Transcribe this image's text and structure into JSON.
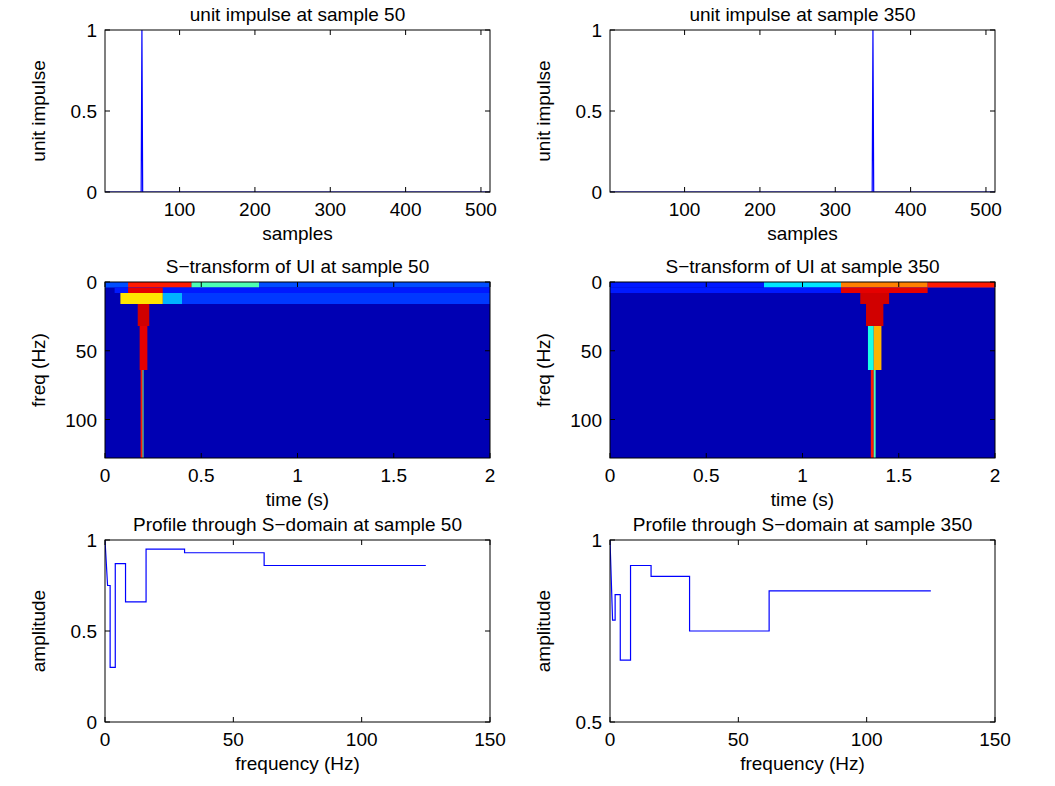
{
  "chart_data": [
    {
      "type": "line",
      "title": "unit impulse at sample 50",
      "x_label": "samples",
      "y_label": "unit impulse",
      "x": [
        1,
        49,
        50,
        51,
        512
      ],
      "series": [
        {
          "color": "#0000ff",
          "values": [
            0,
            0,
            1,
            0,
            0
          ]
        }
      ],
      "xlim": [
        1,
        512
      ],
      "ylim": [
        0,
        1
      ],
      "xticks": [
        100,
        200,
        300,
        400,
        500
      ],
      "yticks": [
        0,
        0.5,
        1
      ]
    },
    {
      "type": "line",
      "title": "unit impulse at sample 350",
      "x_label": "samples",
      "y_label": "unit impulse",
      "x": [
        1,
        349,
        350,
        351,
        512
      ],
      "series": [
        {
          "color": "#0000ff",
          "values": [
            0,
            0,
            1,
            0,
            0
          ]
        }
      ],
      "xlim": [
        1,
        512
      ],
      "ylim": [
        0,
        1
      ],
      "xticks": [
        100,
        200,
        300,
        400,
        500
      ],
      "yticks": [
        0,
        0.5,
        1
      ]
    },
    {
      "type": "heatmap",
      "title": "S−transform of UI at sample 50",
      "x_label": "time (s)",
      "y_label": "freq (Hz)",
      "xlim": [
        0,
        2
      ],
      "ylim": [
        128,
        0
      ],
      "xticks": [
        0,
        0.5,
        1,
        1.5,
        2
      ],
      "yticks": [
        0,
        50,
        100
      ],
      "color_range": [
        0,
        1
      ],
      "cells": [
        {
          "t": [
            0,
            2
          ],
          "f": [
            0,
            128
          ],
          "value": 0.05
        },
        {
          "t": [
            0,
            2
          ],
          "f": [
            0,
            4
          ],
          "value": 0.2
        },
        {
          "t": [
            0.12,
            0.45
          ],
          "f": [
            0,
            4
          ],
          "value": 0.85
        },
        {
          "t": [
            0.45,
            0.8
          ],
          "f": [
            0,
            4
          ],
          "value": 0.45
        },
        {
          "t": [
            0.05,
            2
          ],
          "f": [
            4,
            8
          ],
          "value": 0.15
        },
        {
          "t": [
            0.12,
            0.3
          ],
          "f": [
            4,
            8
          ],
          "value": 0.9
        },
        {
          "t": [
            0.4,
            2
          ],
          "f": [
            8,
            16
          ],
          "value": 0.18
        },
        {
          "t": [
            0.3,
            0.4
          ],
          "f": [
            8,
            16
          ],
          "value": 0.3
        },
        {
          "t": [
            0.08,
            0.3
          ],
          "f": [
            8,
            16
          ],
          "value": 0.65
        },
        {
          "t": [
            0.17,
            0.23
          ],
          "f": [
            16,
            32
          ],
          "value": 0.92
        },
        {
          "t": [
            0.18,
            0.22
          ],
          "f": [
            32,
            64
          ],
          "value": 0.9
        },
        {
          "t": [
            0.185,
            0.195
          ],
          "f": [
            64,
            128
          ],
          "value": 0.85
        },
        {
          "t": [
            0.195,
            0.2
          ],
          "f": [
            64,
            128
          ],
          "value": 0.5
        }
      ]
    },
    {
      "type": "heatmap",
      "title": "S−transform of UI at sample 350",
      "x_label": "time (s)",
      "y_label": "freq (Hz)",
      "xlim": [
        0,
        2
      ],
      "ylim": [
        128,
        0
      ],
      "xticks": [
        0,
        0.5,
        1,
        1.5,
        2
      ],
      "yticks": [
        0,
        50,
        100
      ],
      "color_range": [
        0,
        1
      ],
      "cells": [
        {
          "t": [
            0,
            2
          ],
          "f": [
            0,
            128
          ],
          "value": 0.05
        },
        {
          "t": [
            0,
            2
          ],
          "f": [
            0,
            4
          ],
          "value": 0.15
        },
        {
          "t": [
            0.8,
            1.2
          ],
          "f": [
            0,
            4
          ],
          "value": 0.35
        },
        {
          "t": [
            1.2,
            1.65
          ],
          "f": [
            0,
            4
          ],
          "value": 0.75
        },
        {
          "t": [
            1.65,
            2
          ],
          "f": [
            0,
            4
          ],
          "value": 0.85
        },
        {
          "t": [
            0,
            1.2
          ],
          "f": [
            4,
            8
          ],
          "value": 0.15
        },
        {
          "t": [
            1.2,
            1.65
          ],
          "f": [
            4,
            8
          ],
          "value": 0.9
        },
        {
          "t": [
            1.3,
            1.45
          ],
          "f": [
            8,
            16
          ],
          "value": 0.92
        },
        {
          "t": [
            1.33,
            1.42
          ],
          "f": [
            16,
            32
          ],
          "value": 0.92
        },
        {
          "t": [
            1.34,
            1.37
          ],
          "f": [
            32,
            64
          ],
          "value": 0.4
        },
        {
          "t": [
            1.37,
            1.41
          ],
          "f": [
            32,
            64
          ],
          "value": 0.7
        },
        {
          "t": [
            1.355,
            1.37
          ],
          "f": [
            64,
            128
          ],
          "value": 0.85
        },
        {
          "t": [
            1.37,
            1.38
          ],
          "f": [
            64,
            128
          ],
          "value": 0.45
        }
      ]
    },
    {
      "type": "line",
      "title": "Profile through S−domain at sample 50",
      "x_label": "frequency (Hz)",
      "y_label": "amplitude",
      "x": [
        0,
        1,
        1,
        2,
        2,
        4,
        4,
        8,
        8,
        16,
        16,
        31,
        31,
        62,
        62,
        125
      ],
      "series": [
        {
          "color": "#0000ff",
          "values": [
            1,
            0.75,
            0.75,
            0.75,
            0.3,
            0.3,
            0.87,
            0.87,
            0.66,
            0.66,
            0.95,
            0.95,
            0.93,
            0.93,
            0.86,
            0.86
          ]
        }
      ],
      "xlim": [
        0,
        150
      ],
      "ylim": [
        0,
        1
      ],
      "xticks": [
        0,
        50,
        100,
        150
      ],
      "yticks": [
        0,
        0.5,
        1
      ]
    },
    {
      "type": "line",
      "title": "Profile through S−domain at sample 350",
      "x_label": "frequency (Hz)",
      "y_label": "amplitude",
      "x": [
        0,
        1,
        1,
        2,
        2,
        4,
        4,
        8,
        8,
        16,
        16,
        31,
        31,
        62,
        62,
        125
      ],
      "series": [
        {
          "color": "#0000ff",
          "values": [
            1,
            0.78,
            0.78,
            0.78,
            0.85,
            0.85,
            0.67,
            0.67,
            0.93,
            0.93,
            0.9,
            0.9,
            0.75,
            0.75,
            0.86,
            0.86
          ]
        }
      ],
      "xlim": [
        0,
        150
      ],
      "ylim": [
        0.5,
        1
      ],
      "xticks": [
        0,
        50,
        100,
        150
      ],
      "yticks": [
        0.5,
        1
      ]
    }
  ]
}
